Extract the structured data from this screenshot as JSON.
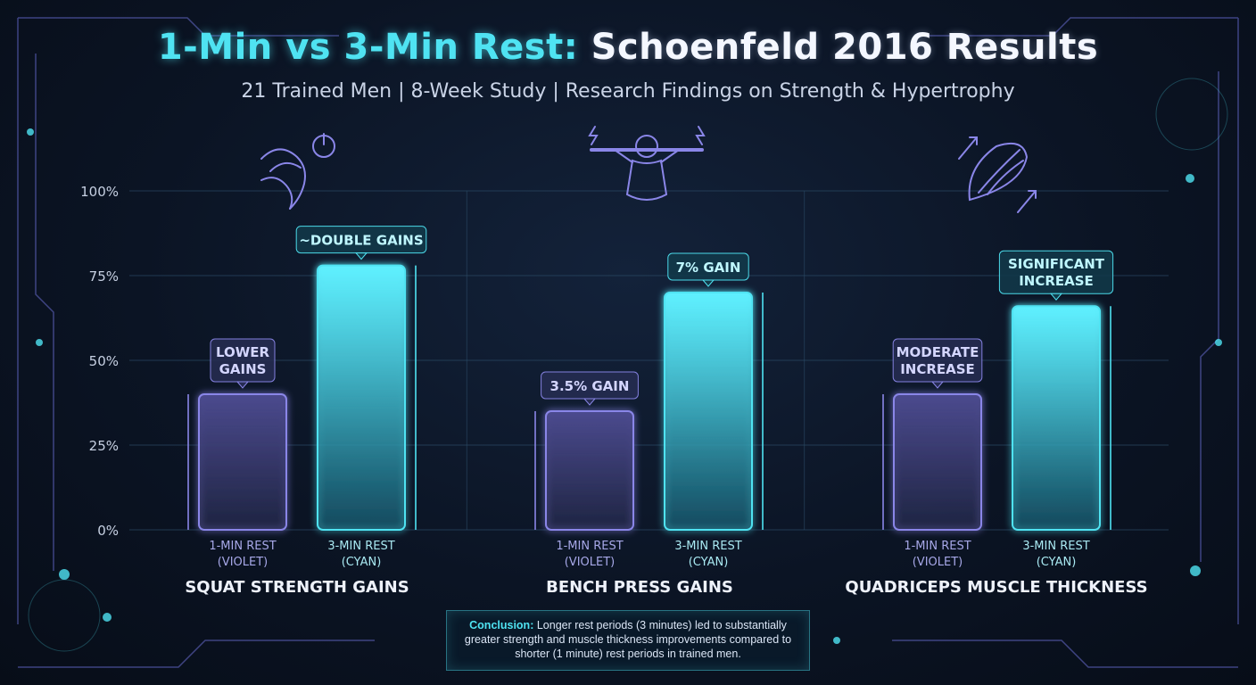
{
  "title_part1": "1-Min vs 3-Min Rest:",
  "title_part2": "Schoenfeld 2016 Results",
  "subtitle": "21 Trained Men | 8-Week Study | Research Findings on Strength & Hypertrophy",
  "conclusion_label": "Conclusion:",
  "conclusion_text": "Longer rest periods (3 minutes) led to substantially greater strength and muscle thickness improvements compared to shorter (1 minute) rest periods in trained men.",
  "colors": {
    "violet": "#8a86e8",
    "cyan": "#4fe3f2",
    "grid": "#2b4a66",
    "axis": "#4fe3f2"
  },
  "chart_data": {
    "type": "bar",
    "ylim": [
      0,
      100
    ],
    "yticks": [
      "0%",
      "25%",
      "50%",
      "75%",
      "100%"
    ],
    "ytick_values": [
      0,
      25,
      50,
      75,
      100
    ],
    "groups": [
      {
        "name": "SQUAT STRENGTH GAINS",
        "icon": "leg-power-icon",
        "bars": [
          {
            "label_line1": "1-MIN REST",
            "label_line2": "(VIOLET)",
            "value": 40,
            "color": "violet",
            "callout": [
              "LOWER",
              "GAINS"
            ]
          },
          {
            "label_line1": "3-MIN REST",
            "label_line2": "(CYAN)",
            "value": 78,
            "color": "cyan",
            "callout": [
              "~DOUBLE GAINS"
            ]
          }
        ]
      },
      {
        "name": "BENCH PRESS GAINS",
        "icon": "bench-press-icon",
        "bars": [
          {
            "label_line1": "1-MIN REST",
            "label_line2": "(VIOLET)",
            "value": 35,
            "color": "violet",
            "callout": [
              "3.5% GAIN"
            ]
          },
          {
            "label_line1": "3-MIN REST",
            "label_line2": "(CYAN)",
            "value": 70,
            "color": "cyan",
            "callout": [
              "7% GAIN"
            ]
          }
        ]
      },
      {
        "name": "QUADRICEPS MUSCLE THICKNESS",
        "icon": "muscle-growth-icon",
        "bars": [
          {
            "label_line1": "1-MIN REST",
            "label_line2": "(VIOLET)",
            "value": 40,
            "color": "violet",
            "callout": [
              "MODERATE",
              "INCREASE"
            ]
          },
          {
            "label_line1": "3-MIN REST",
            "label_line2": "(CYAN)",
            "value": 66,
            "color": "cyan",
            "callout": [
              "SIGNIFICANT",
              "INCREASE"
            ]
          }
        ]
      }
    ]
  }
}
